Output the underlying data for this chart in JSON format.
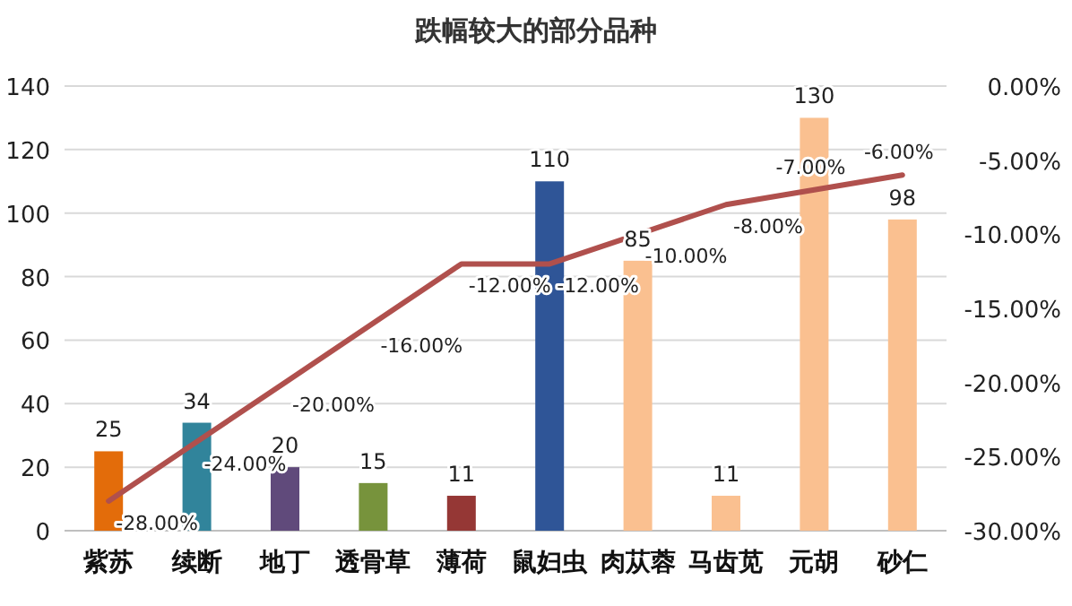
{
  "chart_data": {
    "type": "bar",
    "title": "跌幅较大的部分品种",
    "categories": [
      "紫苏",
      "续断",
      "地丁",
      "透骨草",
      "薄荷",
      "鼠妇虫",
      "肉苁蓉",
      "马齿苋",
      "元胡",
      "砂仁"
    ],
    "series": [
      {
        "colors": [
          "#e36c0a",
          "#31849b",
          "#604a7b",
          "#77933c",
          "#953735",
          "#2f5597",
          "#fac090",
          "#fac090",
          "#fac090",
          "#fac090"
        ],
        "values": [
          25,
          34,
          20,
          15,
          11,
          110,
          85,
          11,
          130,
          98
        ],
        "data_labels": true
      },
      {
        "type": "line",
        "axis": "y2",
        "color": "#b0504d",
        "values": [
          -28,
          -24,
          -20,
          -16,
          -12,
          -12,
          -10,
          -8,
          -7,
          -6
        ],
        "value_labels": [
          "-28.00%",
          "-24.00%",
          "-20.00%",
          "-16.00%",
          "-12.00%",
          "-12.00%",
          "-10.00%",
          "-8.00%",
          "-7.00%",
          "-6.00%"
        ]
      }
    ],
    "ylim": [
      0,
      140
    ],
    "yticks": [
      0,
      20,
      40,
      60,
      80,
      100,
      120,
      140
    ],
    "y2lim": [
      -30,
      0
    ],
    "y2ticks": [
      {
        "value": -30,
        "label": "-30.00%"
      },
      {
        "value": -25,
        "label": "-25.00%"
      },
      {
        "value": -20,
        "label": "-20.00%"
      },
      {
        "value": -15,
        "label": "-15.00%"
      },
      {
        "value": -10,
        "label": "-10.00%"
      },
      {
        "value": -5,
        "label": "-5.00%"
      },
      {
        "value": 0,
        "label": "0.00%"
      }
    ],
    "grid": "y"
  }
}
